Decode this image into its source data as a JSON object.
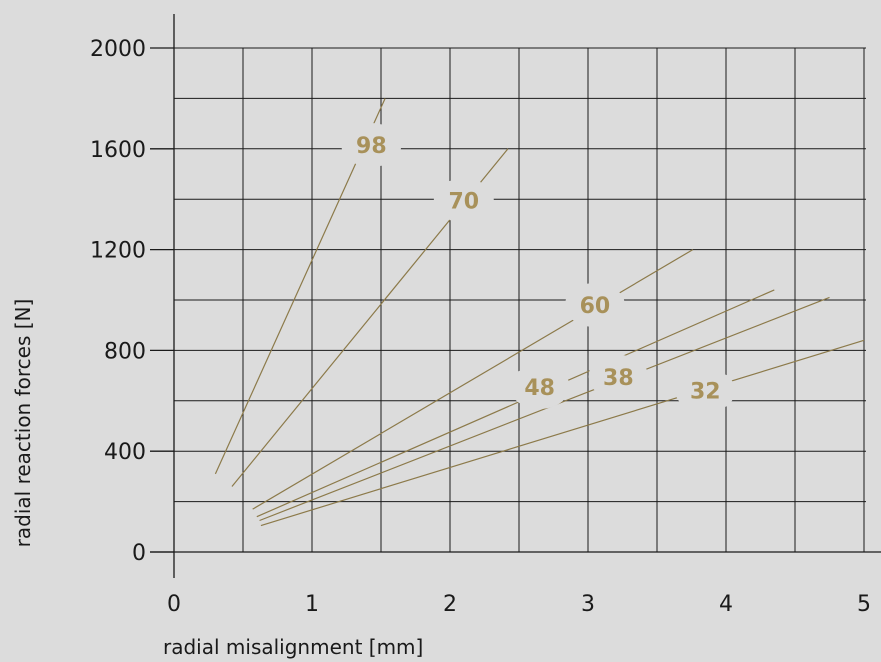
{
  "chart_data": {
    "type": "line",
    "title": "",
    "xlabel": "radial misalignment [mm]",
    "ylabel": "radial reaction forces [N]",
    "xlim": [
      0,
      5
    ],
    "ylim": [
      0,
      2000
    ],
    "x_ticks": [
      "0",
      "1",
      "2",
      "3",
      "4",
      "5"
    ],
    "y_ticks": [
      "0",
      "400",
      "800",
      "1200",
      "1600",
      "2000"
    ],
    "grid": true,
    "colors": {
      "background": "#dcdcdc",
      "grid": "#1a1a1a",
      "series_line": "#8c7a4a",
      "series_label": "#a8915a"
    },
    "series": [
      {
        "name": "98",
        "label_at": [
          1.43,
          1615
        ],
        "points": [
          [
            0.3,
            310
          ],
          [
            1.53,
            1800
          ]
        ]
      },
      {
        "name": "70",
        "label_at": [
          2.1,
          1395
        ],
        "points": [
          [
            0.42,
            260
          ],
          [
            2.42,
            1600
          ]
        ]
      },
      {
        "name": "60",
        "label_at": [
          3.05,
          980
        ],
        "points": [
          [
            0.57,
            170
          ],
          [
            3.76,
            1200
          ]
        ]
      },
      {
        "name": "48",
        "label_at": [
          2.65,
          655
        ],
        "points": [
          [
            0.6,
            140
          ],
          [
            4.35,
            1040
          ]
        ]
      },
      {
        "name": "38",
        "label_at": [
          3.22,
          695
        ],
        "points": [
          [
            0.62,
            125
          ],
          [
            4.75,
            1010
          ]
        ]
      },
      {
        "name": "32",
        "label_at": [
          3.85,
          640
        ],
        "points": [
          [
            0.63,
            105
          ],
          [
            5.0,
            840
          ]
        ]
      }
    ]
  }
}
